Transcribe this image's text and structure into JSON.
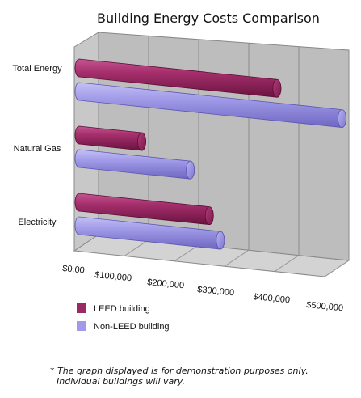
{
  "chart_data": {
    "type": "bar",
    "orientation": "horizontal",
    "title": "Building Energy Costs Comparison",
    "categories": [
      "Total Energy",
      "Natural Gas",
      "Electricity"
    ],
    "series": [
      {
        "name": "LEED building",
        "values": [
          395000,
          125000,
          260000
        ],
        "color": "#9b2a63"
      },
      {
        "name": "Non-LEED building",
        "values": [
          525000,
          222000,
          282000
        ],
        "color": "#a09ae8"
      }
    ],
    "xlim": [
      0,
      500000
    ],
    "ticks": [
      "$0.00",
      "$100,000",
      "$200,000",
      "$300,000",
      "$400,000",
      "$500,000"
    ],
    "grid": true,
    "legend": "bottom-left"
  },
  "footnote": {
    "line1": "* The graph displayed is for demonstration purposes only.",
    "line2": "Individual buildings will vary."
  }
}
